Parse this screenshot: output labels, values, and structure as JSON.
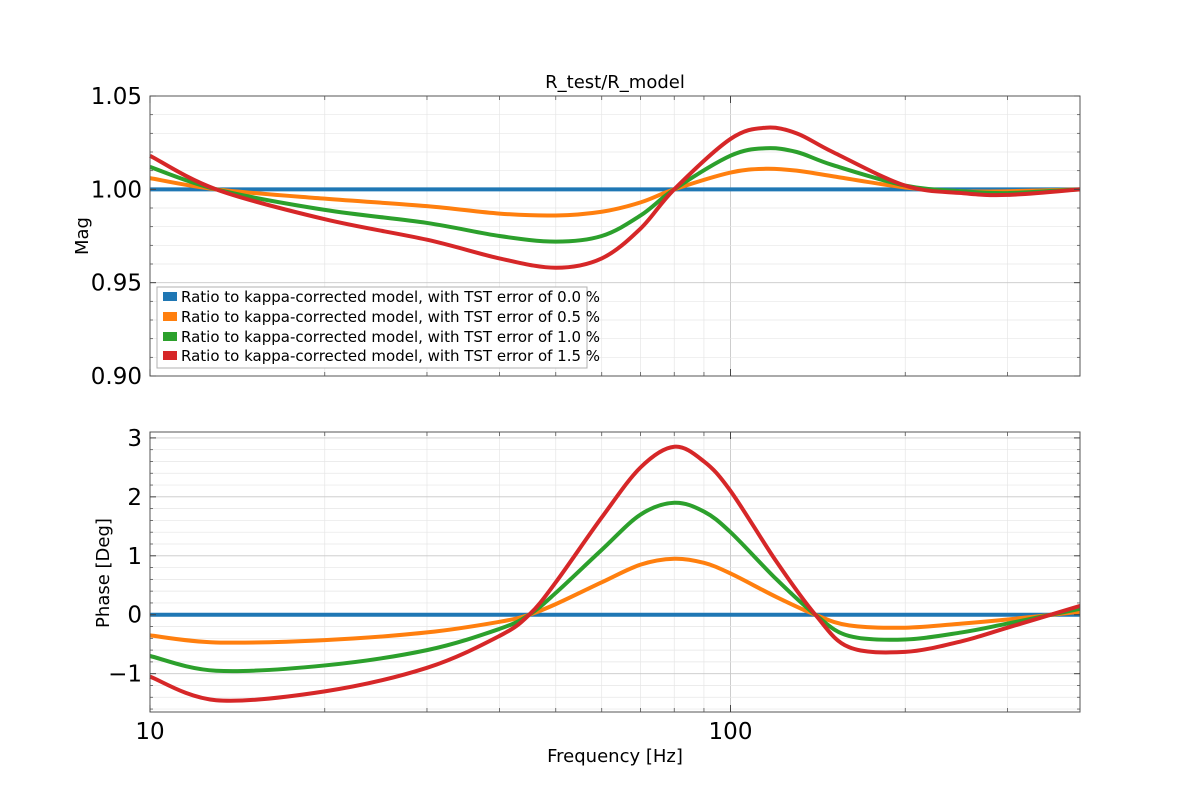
{
  "chart_data": {
    "type": "line",
    "title": "R_test/R_model",
    "xlabel": "Frequency [Hz]",
    "xscale": "log",
    "xlim": [
      10,
      400
    ],
    "xticks": [
      {
        "value": 10,
        "label": "10"
      },
      {
        "value": 100,
        "label": "100"
      }
    ],
    "grid": true,
    "colors": {
      "0.0": "#1f77b4",
      "0.5": "#ff7f0e",
      "1.0": "#2ca02c",
      "1.5": "#d62728"
    },
    "legend": {
      "placement": "lower-left of top panel",
      "entries": [
        "Ratio to kappa-corrected model, with TST error of 0.0 %",
        "Ratio to kappa-corrected model, with TST error of 0.5 %",
        "Ratio to kappa-corrected model, with TST error of 1.0 %",
        "Ratio to kappa-corrected model, with TST error of 1.5 %"
      ]
    },
    "panels": [
      {
        "name": "magnitude",
        "ylabel": "Mag",
        "ylim": [
          0.9,
          1.05
        ],
        "yticks": [
          {
            "value": 1.05,
            "label": "1.05"
          },
          {
            "value": 1.0,
            "label": "1.00"
          },
          {
            "value": 0.95,
            "label": "0.95"
          },
          {
            "value": 0.9,
            "label": "0.90"
          }
        ],
        "x": [
          10,
          13,
          20,
          30,
          40,
          50,
          60,
          70,
          80,
          100,
          115,
          130,
          150,
          200,
          250,
          300,
          400
        ],
        "series": [
          {
            "key": "0.0",
            "values": [
              1.0,
              1.0,
              1.0,
              1.0,
              1.0,
              1.0,
              1.0,
              1.0,
              1.0,
              1.0,
              1.0,
              1.0,
              1.0,
              1.0,
              1.0,
              1.0,
              1.0
            ]
          },
          {
            "key": "0.5",
            "values": [
              1.006,
              1.0,
              0.995,
              0.991,
              0.987,
              0.986,
              0.988,
              0.993,
              1.0,
              1.009,
              1.011,
              1.01,
              1.007,
              1.001,
              0.999,
              0.999,
              1.0
            ]
          },
          {
            "key": "1.0",
            "values": [
              1.012,
              1.0,
              0.989,
              0.982,
              0.975,
              0.972,
              0.975,
              0.986,
              1.0,
              1.018,
              1.022,
              1.02,
              1.013,
              1.002,
              0.999,
              0.998,
              1.0
            ]
          },
          {
            "key": "1.5",
            "values": [
              1.018,
              1.0,
              0.984,
              0.973,
              0.963,
              0.958,
              0.963,
              0.979,
              1.0,
              1.027,
              1.033,
              1.03,
              1.02,
              1.002,
              0.998,
              0.997,
              1.0
            ]
          }
        ]
      },
      {
        "name": "phase",
        "ylabel": "Phase [Deg]",
        "ylim": [
          -1.65,
          3.1
        ],
        "yticks": [
          {
            "value": 3,
            "label": "3"
          },
          {
            "value": 2,
            "label": "2"
          },
          {
            "value": 1,
            "label": "1"
          },
          {
            "value": 0,
            "label": "0"
          },
          {
            "value": -1,
            "label": "−1"
          }
        ],
        "x": [
          10,
          13,
          20,
          30,
          40,
          45,
          50,
          60,
          70,
          80,
          90,
          100,
          120,
          140,
          160,
          200,
          250,
          300,
          400
        ],
        "series": [
          {
            "key": "0.0",
            "values": [
              0,
              0,
              0,
              0,
              0,
              0,
              0,
              0,
              0,
              0,
              0,
              0,
              0,
              0,
              0,
              0,
              0,
              0,
              0
            ]
          },
          {
            "key": "0.5",
            "values": [
              -0.35,
              -0.47,
              -0.43,
              -0.3,
              -0.12,
              0.0,
              0.18,
              0.55,
              0.85,
              0.95,
              0.88,
              0.7,
              0.3,
              0.0,
              -0.18,
              -0.22,
              -0.15,
              -0.08,
              0.05
            ]
          },
          {
            "key": "1.0",
            "values": [
              -0.7,
              -0.95,
              -0.86,
              -0.6,
              -0.24,
              0.0,
              0.37,
              1.1,
              1.7,
              1.9,
              1.75,
              1.4,
              0.6,
              0.0,
              -0.36,
              -0.42,
              -0.3,
              -0.15,
              0.1
            ]
          },
          {
            "key": "1.5",
            "values": [
              -1.05,
              -1.45,
              -1.3,
              -0.9,
              -0.36,
              0.0,
              0.55,
              1.65,
              2.5,
              2.85,
              2.6,
              2.1,
              0.9,
              0.0,
              -0.55,
              -0.63,
              -0.45,
              -0.22,
              0.15
            ]
          }
        ]
      }
    ]
  }
}
